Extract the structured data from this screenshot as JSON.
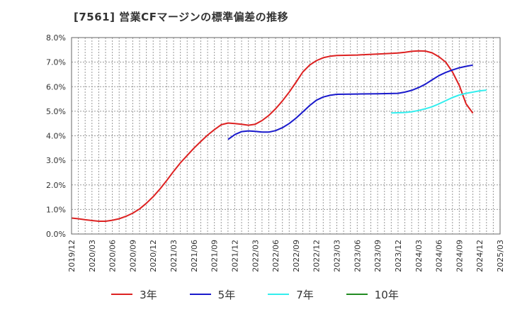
{
  "chart_data": {
    "type": "line",
    "title": "[7561]  営業CFマージンの標準偏差の推移",
    "xlabel": "",
    "ylabel": "",
    "ylim": [
      0.0,
      0.08
    ],
    "y_ticks": [
      "0.0%",
      "1.0%",
      "2.0%",
      "3.0%",
      "4.0%",
      "5.0%",
      "6.0%",
      "7.0%",
      "8.0%"
    ],
    "x_range": [
      "2019/12",
      "2025/03"
    ],
    "x_ticks": [
      "2019/12",
      "2020/03",
      "2020/06",
      "2020/09",
      "2020/12",
      "2021/03",
      "2021/06",
      "2021/09",
      "2021/12",
      "2022/03",
      "2022/06",
      "2022/09",
      "2022/12",
      "2023/03",
      "2023/06",
      "2023/09",
      "2023/12",
      "2024/03",
      "2024/06",
      "2024/09",
      "2024/12",
      "2025/03"
    ],
    "grid": true,
    "legend_position": "bottom",
    "series": [
      {
        "name": "3年",
        "color": "#dd2222",
        "points": [
          [
            "2019/12",
            0.0065
          ],
          [
            "2020/01",
            0.0062
          ],
          [
            "2020/02",
            0.0058
          ],
          [
            "2020/03",
            0.0055
          ],
          [
            "2020/04",
            0.0052
          ],
          [
            "2020/05",
            0.0052
          ],
          [
            "2020/06",
            0.0056
          ],
          [
            "2020/07",
            0.0062
          ],
          [
            "2020/08",
            0.0072
          ],
          [
            "2020/09",
            0.0085
          ],
          [
            "2020/10",
            0.0102
          ],
          [
            "2020/11",
            0.0125
          ],
          [
            "2020/12",
            0.0152
          ],
          [
            "2021/01",
            0.0183
          ],
          [
            "2021/02",
            0.0218
          ],
          [
            "2021/03",
            0.0255
          ],
          [
            "2021/04",
            0.029
          ],
          [
            "2021/05",
            0.032
          ],
          [
            "2021/06",
            0.035
          ],
          [
            "2021/07",
            0.0377
          ],
          [
            "2021/08",
            0.0403
          ],
          [
            "2021/09",
            0.0425
          ],
          [
            "2021/10",
            0.0445
          ],
          [
            "2021/11",
            0.0452
          ],
          [
            "2021/12",
            0.045
          ],
          [
            "2022/01",
            0.0447
          ],
          [
            "2022/02",
            0.0443
          ],
          [
            "2022/03",
            0.0447
          ],
          [
            "2022/04",
            0.0462
          ],
          [
            "2022/05",
            0.0483
          ],
          [
            "2022/06",
            0.051
          ],
          [
            "2022/07",
            0.0542
          ],
          [
            "2022/08",
            0.0578
          ],
          [
            "2022/09",
            0.0618
          ],
          [
            "2022/10",
            0.066
          ],
          [
            "2022/11",
            0.0688
          ],
          [
            "2022/12",
            0.0706
          ],
          [
            "2023/01",
            0.0718
          ],
          [
            "2023/02",
            0.0724
          ],
          [
            "2023/03",
            0.0727
          ],
          [
            "2023/06",
            0.0729
          ],
          [
            "2023/09",
            0.0733
          ],
          [
            "2023/12",
            0.0737
          ],
          [
            "2024/01",
            0.074
          ],
          [
            "2024/02",
            0.0744
          ],
          [
            "2024/03",
            0.0746
          ],
          [
            "2024/04",
            0.0745
          ],
          [
            "2024/05",
            0.0738
          ],
          [
            "2024/06",
            0.0722
          ],
          [
            "2024/07",
            0.07
          ],
          [
            "2024/08",
            0.066
          ],
          [
            "2024/09",
            0.0605
          ],
          [
            "2024/10",
            0.053
          ],
          [
            "2024/11",
            0.0492
          ]
        ]
      },
      {
        "name": "5年",
        "color": "#1a1acc",
        "points": [
          [
            "2021/11",
            0.0385
          ],
          [
            "2021/12",
            0.0405
          ],
          [
            "2022/01",
            0.0417
          ],
          [
            "2022/02",
            0.042
          ],
          [
            "2022/03",
            0.0418
          ],
          [
            "2022/04",
            0.0415
          ],
          [
            "2022/05",
            0.0415
          ],
          [
            "2022/06",
            0.0421
          ],
          [
            "2022/07",
            0.0433
          ],
          [
            "2022/08",
            0.045
          ],
          [
            "2022/09",
            0.0472
          ],
          [
            "2022/10",
            0.0497
          ],
          [
            "2022/11",
            0.0523
          ],
          [
            "2022/12",
            0.0545
          ],
          [
            "2023/01",
            0.0558
          ],
          [
            "2023/02",
            0.0565
          ],
          [
            "2023/03",
            0.0569
          ],
          [
            "2023/06",
            0.057
          ],
          [
            "2023/09",
            0.0571
          ],
          [
            "2023/12",
            0.0573
          ],
          [
            "2024/01",
            0.0578
          ],
          [
            "2024/02",
            0.0585
          ],
          [
            "2024/03",
            0.0596
          ],
          [
            "2024/04",
            0.061
          ],
          [
            "2024/05",
            0.0628
          ],
          [
            "2024/06",
            0.0645
          ],
          [
            "2024/07",
            0.0658
          ],
          [
            "2024/08",
            0.0668
          ],
          [
            "2024/09",
            0.0677
          ],
          [
            "2024/10",
            0.0683
          ],
          [
            "2024/11",
            0.0688
          ]
        ]
      },
      {
        "name": "7年",
        "color": "#33eeee",
        "points": [
          [
            "2023/11",
            0.0493
          ],
          [
            "2023/12",
            0.0494
          ],
          [
            "2024/01",
            0.0495
          ],
          [
            "2024/02",
            0.0498
          ],
          [
            "2024/03",
            0.0503
          ],
          [
            "2024/04",
            0.051
          ],
          [
            "2024/05",
            0.0518
          ],
          [
            "2024/06",
            0.053
          ],
          [
            "2024/07",
            0.0543
          ],
          [
            "2024/08",
            0.0556
          ],
          [
            "2024/09",
            0.0566
          ],
          [
            "2024/10",
            0.0573
          ],
          [
            "2024/11",
            0.0578
          ],
          [
            "2024/12",
            0.0583
          ],
          [
            "2025/01",
            0.0586
          ]
        ]
      },
      {
        "name": "10年",
        "color": "#228b22",
        "points": []
      }
    ]
  }
}
